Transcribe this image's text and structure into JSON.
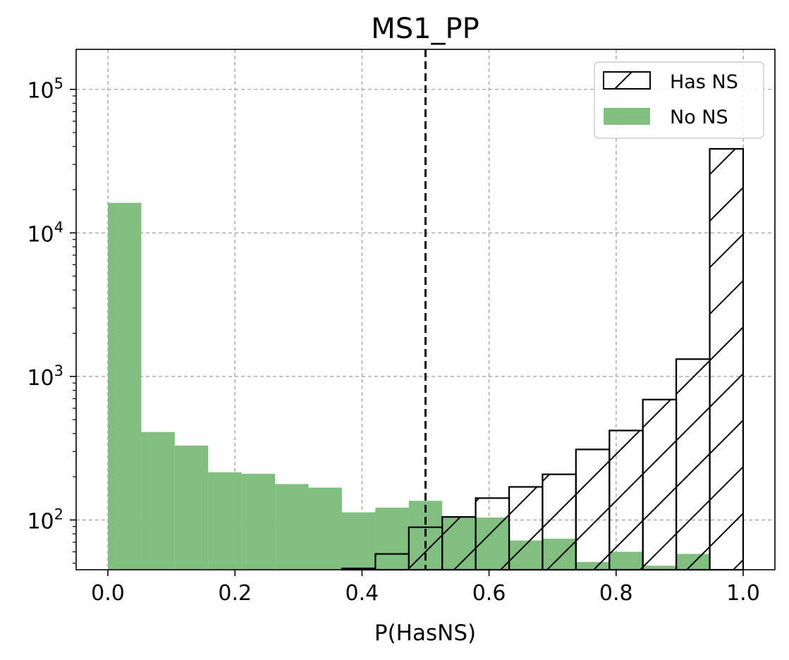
{
  "chart_data": {
    "type": "bar",
    "title": "MS1_PP",
    "xlabel": "P(HasNS)",
    "ylabel": "",
    "xlim": [
      -0.05,
      1.05
    ],
    "ylim": [
      45,
      190000
    ],
    "yscale": "log",
    "grid": true,
    "legend_position": "top-right",
    "threshold": 0.5,
    "xticks": [
      0.0,
      0.2,
      0.4,
      0.6,
      0.8,
      1.0
    ],
    "xtick_labels": [
      "0.0",
      "0.2",
      "0.4",
      "0.6",
      "0.8",
      "1.0"
    ],
    "ytick_values": [
      100,
      1000,
      10000,
      100000
    ],
    "ytick_labels": [
      {
        "base": "10",
        "exp": "2"
      },
      {
        "base": "10",
        "exp": "3"
      },
      {
        "base": "10",
        "exp": "4"
      },
      {
        "base": "10",
        "exp": "5"
      }
    ],
    "bin_edges": [
      0.0,
      0.0526,
      0.1053,
      0.1579,
      0.2105,
      0.2632,
      0.3158,
      0.3684,
      0.4211,
      0.4737,
      0.5263,
      0.5789,
      0.6316,
      0.6842,
      0.7368,
      0.7895,
      0.8421,
      0.8947,
      0.9474,
      1.0
    ],
    "series": [
      {
        "name": "Has NS",
        "style": "hatched-outline",
        "values": [
          0,
          0,
          0,
          0,
          0,
          0,
          0,
          46,
          58,
          89,
          105,
          142,
          170,
          208,
          310,
          420,
          690,
          1320,
          38500
        ]
      },
      {
        "name": "No NS",
        "style": "filled",
        "color": "#80bf80",
        "values": [
          16200,
          410,
          330,
          215,
          210,
          178,
          168,
          113,
          122,
          136,
          106,
          104,
          72,
          74,
          51,
          60,
          48,
          58,
          0
        ]
      }
    ]
  }
}
